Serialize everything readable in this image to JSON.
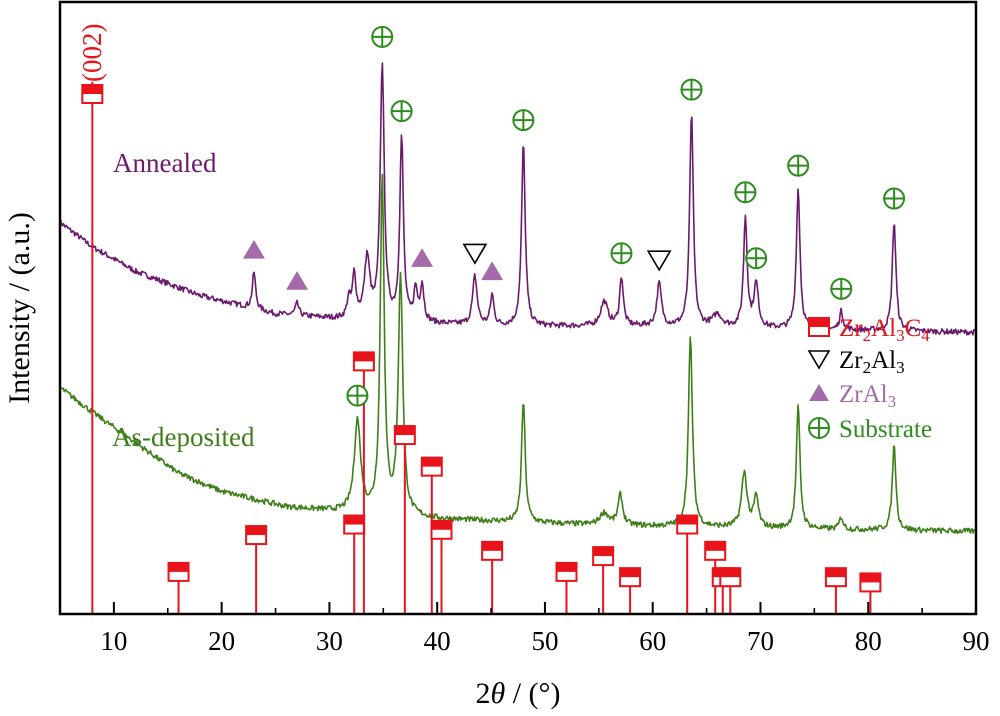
{
  "colors": {
    "annealed": "#6b1a6e",
    "as_deposited": "#3f7f1a",
    "zr2al3c4": "#e8131b",
    "zr2al3": "#000000",
    "zral3": "#a56aaa",
    "substrate": "#2e8c1f",
    "axis": "#000000"
  },
  "chart_data": {
    "type": "line",
    "title": "",
    "xlabel": "2θ / (°)",
    "xlabel_parts": {
      "prefix": "2",
      "theta": "θ",
      "suffix": " / (°)"
    },
    "ylabel": "Intensity / (a.u.)",
    "xlim": [
      5,
      90
    ],
    "ylim": [
      0,
      100
    ],
    "y_ticks_shown": false,
    "x_ticks": [
      10,
      20,
      30,
      40,
      50,
      60,
      70,
      80,
      90
    ],
    "series": [
      {
        "name": "Annealed",
        "baseline": [
          [
            5,
            64
          ],
          [
            8,
            60
          ],
          [
            12,
            56
          ],
          [
            18,
            52
          ],
          [
            25,
            49
          ],
          [
            32,
            48
          ],
          [
            45,
            47
          ],
          [
            60,
            47
          ],
          [
            75,
            46.5
          ],
          [
            90,
            46
          ]
        ],
        "peaks": [
          [
            23.0,
            6,
            0.18
          ],
          [
            27.0,
            2,
            0.2
          ],
          [
            31.8,
            3,
            0.2
          ],
          [
            32.3,
            7,
            0.2
          ],
          [
            33.5,
            10,
            0.3
          ],
          [
            34.9,
            42,
            0.22
          ],
          [
            36.7,
            30,
            0.2
          ],
          [
            38.0,
            5,
            0.2
          ],
          [
            38.6,
            6,
            0.2
          ],
          [
            43.5,
            8,
            0.25
          ],
          [
            45.1,
            5,
            0.2
          ],
          [
            48.0,
            30,
            0.2
          ],
          [
            55.5,
            4,
            0.4
          ],
          [
            57.1,
            8,
            0.2
          ],
          [
            60.6,
            7,
            0.25
          ],
          [
            63.6,
            35,
            0.2
          ],
          [
            66.0,
            2,
            0.5
          ],
          [
            68.6,
            18,
            0.2
          ],
          [
            69.6,
            7,
            0.25
          ],
          [
            73.5,
            23,
            0.2
          ],
          [
            77.5,
            3,
            0.2
          ],
          [
            82.4,
            18,
            0.2
          ]
        ]
      },
      {
        "name": "As-deposited",
        "baseline": [
          [
            5,
            37
          ],
          [
            8,
            33
          ],
          [
            12,
            28
          ],
          [
            16,
            23
          ],
          [
            20,
            20
          ],
          [
            26,
            17.5
          ],
          [
            32,
            16.5
          ],
          [
            40,
            15.5
          ],
          [
            55,
            14.5
          ],
          [
            70,
            14
          ],
          [
            90,
            13.5
          ]
        ],
        "peaks": [
          [
            32.6,
            15,
            0.35
          ],
          [
            34.9,
            55,
            0.22
          ],
          [
            36.6,
            39,
            0.25
          ],
          [
            48.0,
            20,
            0.2
          ],
          [
            55.5,
            2,
            0.5
          ],
          [
            57.0,
            5,
            0.25
          ],
          [
            63.5,
            31,
            0.22
          ],
          [
            68.5,
            9,
            0.3
          ],
          [
            69.6,
            5,
            0.25
          ],
          [
            73.5,
            20,
            0.2
          ],
          [
            77.5,
            2,
            0.2
          ],
          [
            82.4,
            14,
            0.2
          ]
        ]
      }
    ],
    "reference_lines": {
      "phase": "Zr2Al3C4",
      "positions": [
        8.0,
        16.0,
        23.2,
        32.3,
        33.2,
        37.0,
        39.5,
        40.4,
        45.1,
        52.0,
        55.4,
        57.9,
        63.2,
        65.8,
        66.5,
        67.2,
        77.0,
        80.2
      ],
      "intensities": [
        100,
        8,
        15,
        17,
        48,
        34,
        28,
        16,
        12,
        8,
        11,
        7,
        17,
        12,
        7,
        7,
        7,
        6
      ]
    },
    "peak_markers": [
      {
        "phase": "ZrAl3",
        "x": 23.0,
        "series": "Annealed"
      },
      {
        "phase": "ZrAl3",
        "x": 27.0,
        "series": "Annealed"
      },
      {
        "phase": "Substrate",
        "x": 34.9,
        "series": "Annealed"
      },
      {
        "phase": "Substrate",
        "x": 36.7,
        "series": "Annealed"
      },
      {
        "phase": "ZrAl3",
        "x": 38.6,
        "series": "Annealed"
      },
      {
        "phase": "Zr2Al3",
        "x": 43.5,
        "series": "Annealed"
      },
      {
        "phase": "ZrAl3",
        "x": 45.1,
        "series": "Annealed"
      },
      {
        "phase": "Substrate",
        "x": 48.0,
        "series": "Annealed"
      },
      {
        "phase": "Substrate",
        "x": 57.1,
        "series": "Annealed"
      },
      {
        "phase": "Zr2Al3",
        "x": 60.6,
        "series": "Annealed"
      },
      {
        "phase": "Substrate",
        "x": 63.6,
        "series": "Annealed"
      },
      {
        "phase": "Substrate",
        "x": 68.6,
        "series": "Annealed"
      },
      {
        "phase": "Substrate",
        "x": 69.6,
        "series": "Annealed"
      },
      {
        "phase": "Substrate",
        "x": 73.5,
        "series": "Annealed"
      },
      {
        "phase": "Substrate",
        "x": 77.5,
        "series": "Annealed"
      },
      {
        "phase": "Substrate",
        "x": 82.4,
        "series": "Annealed"
      },
      {
        "phase": "Substrate",
        "x": 32.6,
        "series": "As-deposited"
      }
    ],
    "annotations": [
      {
        "text": "(002)",
        "x": 8.0
      }
    ],
    "legend": {
      "placement": "right",
      "entries": [
        {
          "phase": "Zr2Al3C4",
          "marker": "half-filled-square",
          "parts": [
            [
              "Zr",
              ""
            ],
            [
              "2",
              "sub"
            ],
            [
              "Al",
              ""
            ],
            [
              "3",
              "sub"
            ],
            [
              "C",
              ""
            ],
            [
              "4",
              "sub"
            ]
          ]
        },
        {
          "phase": "Zr2Al3",
          "marker": "open-down-triangle",
          "parts": [
            [
              "Zr",
              ""
            ],
            [
              "2",
              "sub"
            ],
            [
              "Al",
              ""
            ],
            [
              "3",
              "sub"
            ]
          ]
        },
        {
          "phase": "ZrAl3",
          "marker": "filled-up-triangle",
          "parts": [
            [
              "ZrAl",
              ""
            ],
            [
              "3",
              "sub"
            ]
          ]
        },
        {
          "phase": "Substrate",
          "marker": "circle-plus",
          "parts": [
            [
              "Substrate",
              ""
            ]
          ]
        }
      ]
    }
  }
}
